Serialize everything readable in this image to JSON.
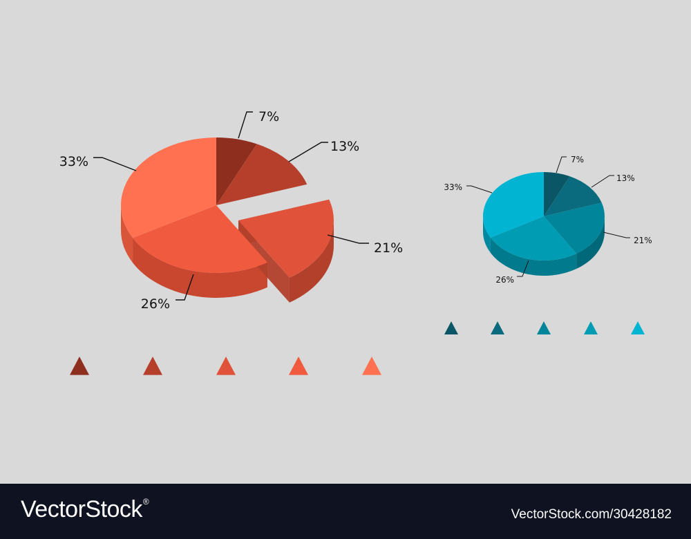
{
  "chart_data": [
    {
      "type": "pie",
      "style": "3d-exploded",
      "palette": "orange",
      "slices": [
        {
          "label": "7%",
          "value": 7,
          "color": "#8e2e1f",
          "side": "#6e2216"
        },
        {
          "label": "13%",
          "value": 13,
          "color": "#b63f2b",
          "side": "#8f2f20"
        },
        {
          "label": "21%",
          "value": 21,
          "color": "#e0533a",
          "side": "#b2402b",
          "exploded": true
        },
        {
          "label": "26%",
          "value": 26,
          "color": "#f05a3e",
          "side": "#c9472f"
        },
        {
          "label": "33%",
          "value": 33,
          "color": "#ff7150",
          "side": "#d8553a"
        }
      ],
      "legend_markers": [
        "#8e2e1f",
        "#b63f2b",
        "#e0533a",
        "#f05a3e",
        "#ff7150"
      ]
    },
    {
      "type": "pie",
      "style": "3d",
      "palette": "teal",
      "slices": [
        {
          "label": "7%",
          "value": 7,
          "color": "#0a5566",
          "side": "#07404d"
        },
        {
          "label": "13%",
          "value": 13,
          "color": "#0a6b7e",
          "side": "#075261"
        },
        {
          "label": "21%",
          "value": 21,
          "color": "#00859a",
          "side": "#006879"
        },
        {
          "label": "26%",
          "value": 26,
          "color": "#009cb3",
          "side": "#007a8c"
        },
        {
          "label": "33%",
          "value": 33,
          "color": "#00b4d2",
          "side": "#0089a0"
        }
      ],
      "legend_markers": [
        "#0a5566",
        "#0a6b7e",
        "#00859a",
        "#009cb3",
        "#00b4d2"
      ]
    }
  ],
  "footer": {
    "brand": "VectorStock",
    "registered_mark": "®",
    "image_id": "VectorStock.com/30428182"
  }
}
